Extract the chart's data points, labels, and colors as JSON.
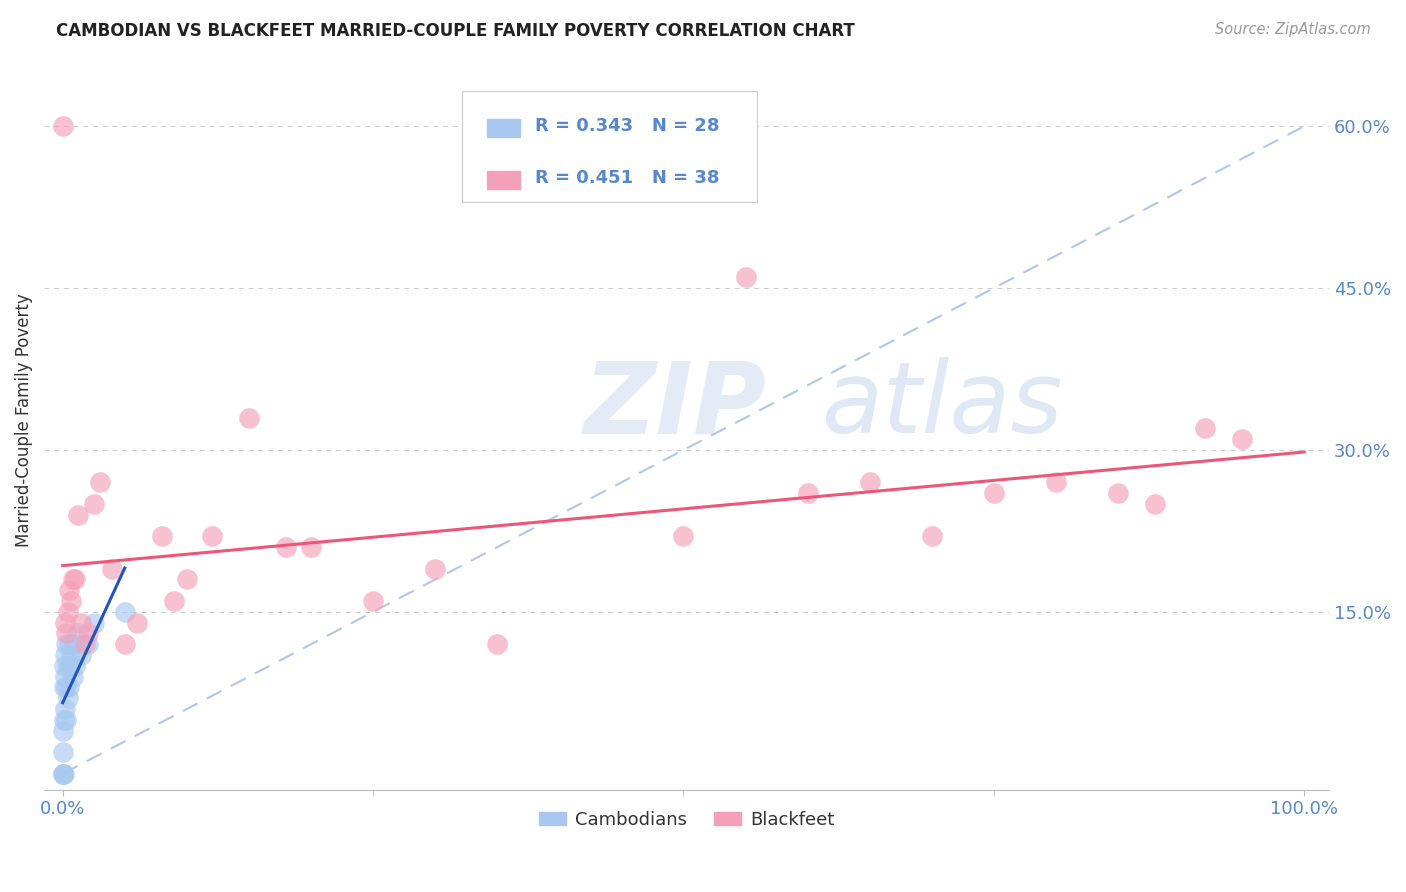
{
  "title": "CAMBODIAN VS BLACKFEET MARRIED-COUPLE FAMILY POVERTY CORRELATION CHART",
  "source": "Source: ZipAtlas.com",
  "ylabel_label": "Married-Couple Family Poverty",
  "legend_label1": "Cambodians",
  "legend_label2": "Blackfeet",
  "R1": 0.343,
  "N1": 28,
  "R2": 0.451,
  "N2": 38,
  "cambodian_color": "#a8c8f0",
  "blackfeet_color": "#f4a0b8",
  "cambodian_line_color": "#2255bb",
  "blackfeet_line_color": "#ee5577",
  "dashed_line_color": "#b0c8e8",
  "background_color": "#ffffff",
  "grid_color": "#cccccc",
  "tick_color": "#5588cc",
  "title_color": "#222222",
  "source_color": "#999999",
  "ylabel_color": "#333333",
  "watermark_zip_color": "#ddeeff",
  "watermark_atlas_color": "#c8d8f0",
  "xlim": [
    0.0,
    1.0
  ],
  "ylim": [
    0.0,
    0.65
  ],
  "yticks": [
    0.15,
    0.3,
    0.45,
    0.6
  ],
  "ytick_labels": [
    "15.0%",
    "30.0%",
    "45.0%",
    "60.0%"
  ],
  "xtick_labels": [
    "0.0%",
    "100.0%"
  ],
  "cambodian_x": [
    0.0,
    0.0,
    0.0,
    0.0,
    0.001,
    0.001,
    0.001,
    0.001,
    0.002,
    0.002,
    0.002,
    0.003,
    0.003,
    0.003,
    0.004,
    0.004,
    0.005,
    0.005,
    0.006,
    0.007,
    0.008,
    0.009,
    0.01,
    0.012,
    0.015,
    0.02,
    0.025,
    0.05
  ],
  "cambodian_y": [
    0.0,
    0.0,
    0.02,
    0.04,
    0.0,
    0.05,
    0.08,
    0.1,
    0.06,
    0.09,
    0.11,
    0.05,
    0.08,
    0.12,
    0.07,
    0.1,
    0.08,
    0.12,
    0.1,
    0.11,
    0.09,
    0.12,
    0.1,
    0.13,
    0.11,
    0.12,
    0.14,
    0.15
  ],
  "blackfeet_x": [
    0.0,
    0.002,
    0.003,
    0.004,
    0.005,
    0.007,
    0.008,
    0.01,
    0.012,
    0.015,
    0.018,
    0.02,
    0.025,
    0.03,
    0.04,
    0.05,
    0.06,
    0.08,
    0.09,
    0.1,
    0.12,
    0.15,
    0.18,
    0.2,
    0.25,
    0.3,
    0.35,
    0.5,
    0.55,
    0.6,
    0.65,
    0.7,
    0.75,
    0.8,
    0.85,
    0.88,
    0.92,
    0.95
  ],
  "blackfeet_y": [
    0.6,
    0.14,
    0.13,
    0.15,
    0.17,
    0.16,
    0.18,
    0.18,
    0.24,
    0.14,
    0.12,
    0.13,
    0.25,
    0.27,
    0.19,
    0.12,
    0.14,
    0.22,
    0.16,
    0.18,
    0.22,
    0.33,
    0.21,
    0.21,
    0.16,
    0.19,
    0.12,
    0.22,
    0.46,
    0.26,
    0.27,
    0.22,
    0.26,
    0.27,
    0.26,
    0.25,
    0.32,
    0.31
  ]
}
